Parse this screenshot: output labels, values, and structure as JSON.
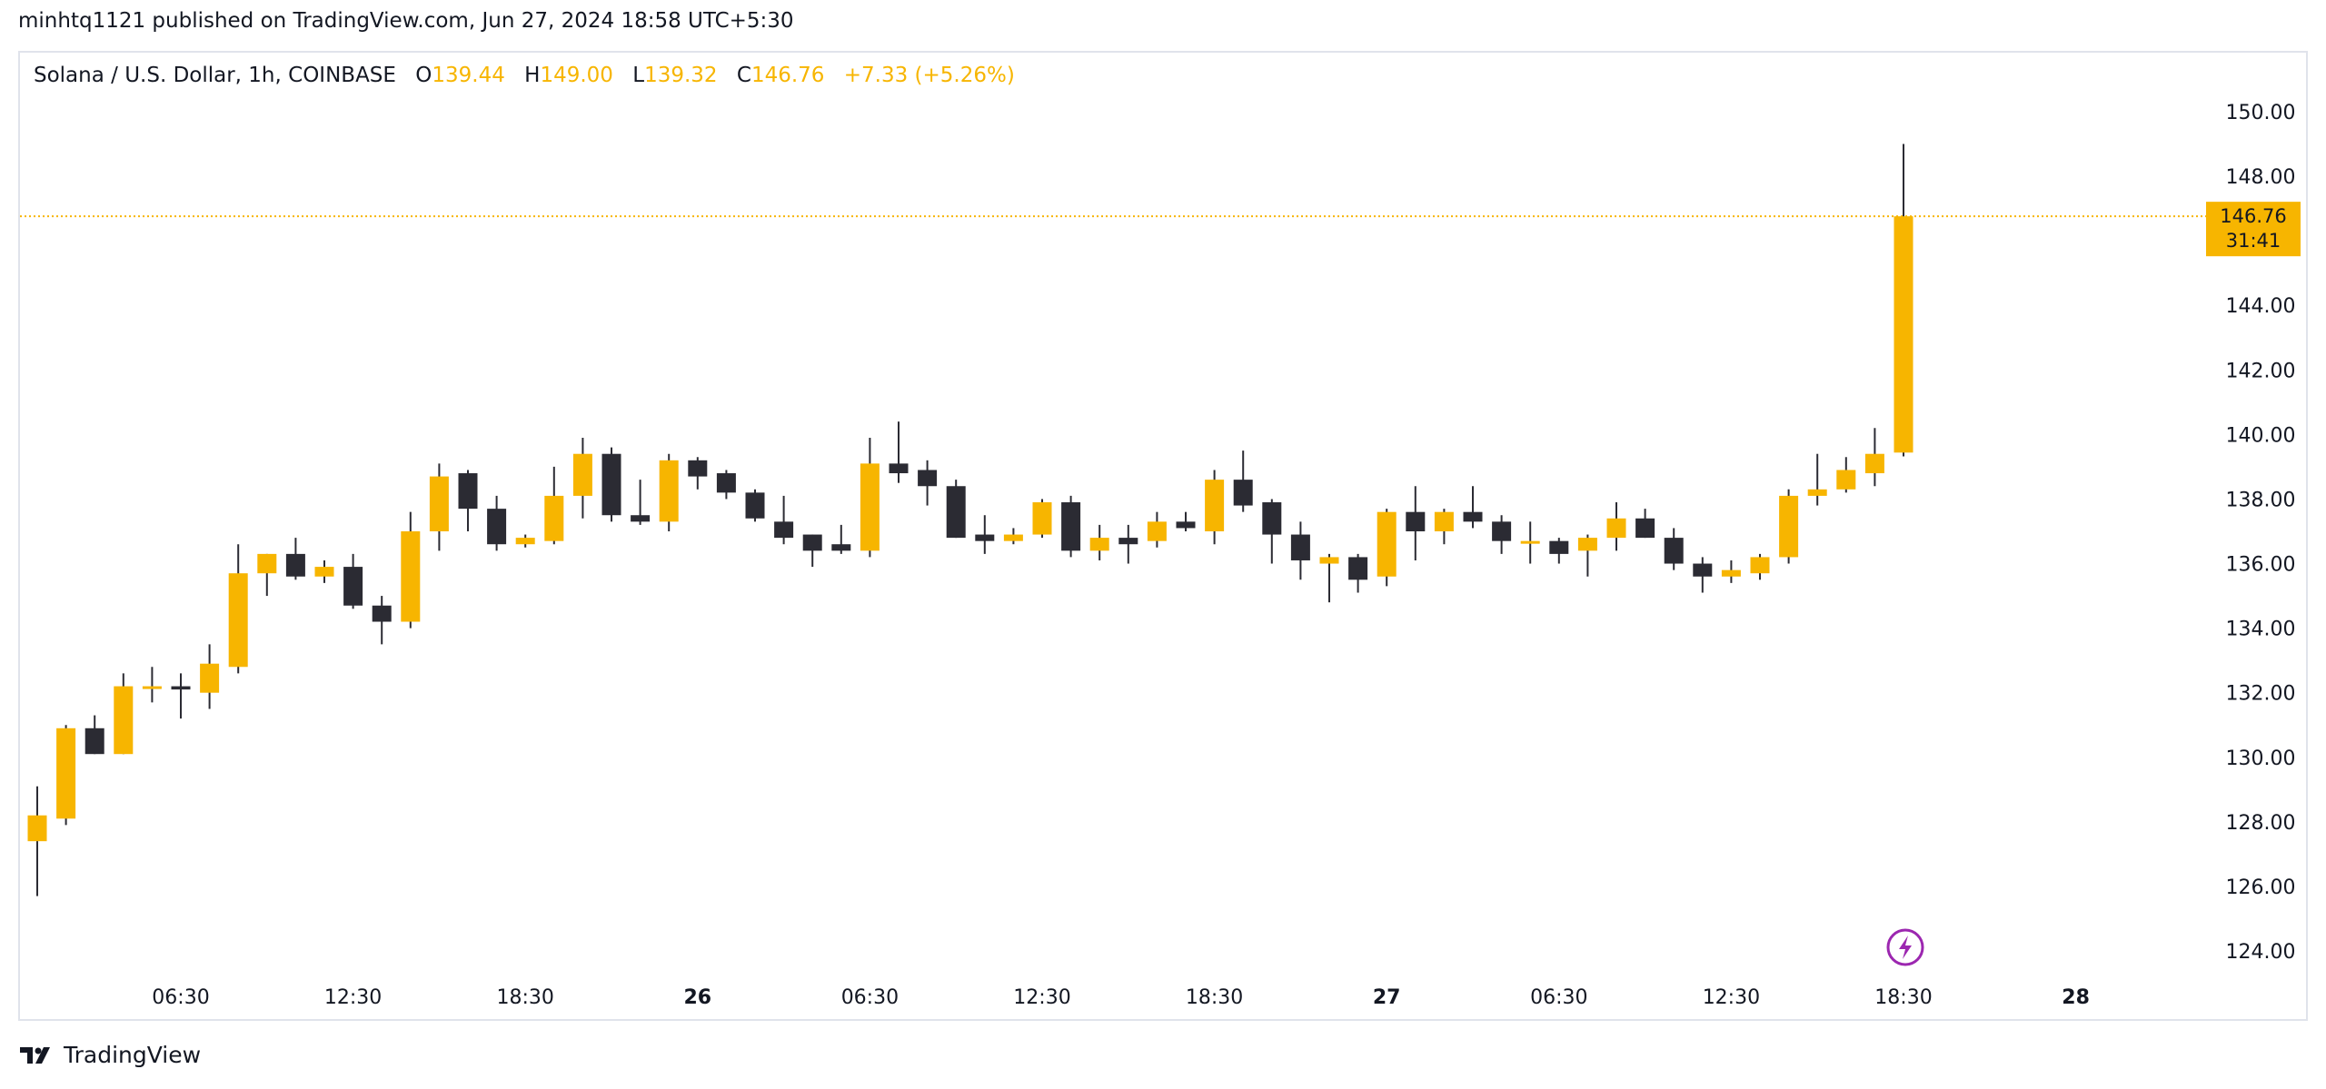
{
  "header": {
    "published_text": "minhtq1121 published on TradingView.com, Jun 27, 2024 18:58 UTC+5:30"
  },
  "legend": {
    "symbol": "Solana / U.S. Dollar, 1h, COINBASE",
    "open_label": "O",
    "open_value": "139.44",
    "high_label": "H",
    "high_value": "149.00",
    "low_label": "L",
    "low_value": "139.32",
    "close_label": "C",
    "close_value": "146.76",
    "change_value": "+7.33 (+5.26%)"
  },
  "price_badge": {
    "price": "146.76",
    "countdown": "31:41"
  },
  "footer": {
    "brand": "TradingView"
  },
  "colors": {
    "up": "#f7b500",
    "down": "#2b2b33",
    "grid": "#e0e3eb",
    "text": "#131722",
    "flash": "#9c27b0"
  },
  "chart_data": {
    "type": "candlestick",
    "title": "Solana / U.S. Dollar, 1h, COINBASE",
    "ylim": [
      123,
      151
    ],
    "y_ticks": [
      124,
      126,
      128,
      130,
      132,
      134,
      136,
      138,
      140,
      142,
      144,
      146,
      148,
      150
    ],
    "x_tick_labels": [
      {
        "index": 5,
        "label": "06:30",
        "bold": false
      },
      {
        "index": 11,
        "label": "12:30",
        "bold": false
      },
      {
        "index": 17,
        "label": "18:30",
        "bold": false
      },
      {
        "index": 23,
        "label": "26",
        "bold": true
      },
      {
        "index": 29,
        "label": "06:30",
        "bold": false
      },
      {
        "index": 35,
        "label": "12:30",
        "bold": false
      },
      {
        "index": 41,
        "label": "18:30",
        "bold": false
      },
      {
        "index": 47,
        "label": "27",
        "bold": true
      },
      {
        "index": 53,
        "label": "06:30",
        "bold": false
      },
      {
        "index": 59,
        "label": "12:30",
        "bold": false
      },
      {
        "index": 65,
        "label": "18:30",
        "bold": false
      },
      {
        "index": 71,
        "label": "28",
        "bold": true
      }
    ],
    "last_price": 146.76,
    "candles": [
      {
        "o": 127.4,
        "h": 129.1,
        "l": 125.7,
        "c": 128.2
      },
      {
        "o": 128.1,
        "h": 131.0,
        "l": 127.9,
        "c": 130.9
      },
      {
        "o": 130.9,
        "h": 131.3,
        "l": 130.1,
        "c": 130.1
      },
      {
        "o": 130.1,
        "h": 132.6,
        "l": 130.1,
        "c": 132.2
      },
      {
        "o": 132.2,
        "h": 132.8,
        "l": 131.7,
        "c": 132.2
      },
      {
        "o": 132.2,
        "h": 132.6,
        "l": 131.2,
        "c": 132.1
      },
      {
        "o": 132.0,
        "h": 133.5,
        "l": 131.5,
        "c": 132.9
      },
      {
        "o": 132.8,
        "h": 136.6,
        "l": 132.6,
        "c": 135.7
      },
      {
        "o": 135.7,
        "h": 136.3,
        "l": 135.0,
        "c": 136.3
      },
      {
        "o": 136.3,
        "h": 136.8,
        "l": 135.5,
        "c": 135.6
      },
      {
        "o": 135.6,
        "h": 136.1,
        "l": 135.4,
        "c": 135.9
      },
      {
        "o": 135.9,
        "h": 136.3,
        "l": 134.6,
        "c": 134.7
      },
      {
        "o": 134.7,
        "h": 135.0,
        "l": 133.5,
        "c": 134.2
      },
      {
        "o": 134.2,
        "h": 137.6,
        "l": 134.0,
        "c": 137.0
      },
      {
        "o": 137.0,
        "h": 139.1,
        "l": 136.4,
        "c": 138.7
      },
      {
        "o": 138.8,
        "h": 138.9,
        "l": 137.0,
        "c": 137.7
      },
      {
        "o": 137.7,
        "h": 138.1,
        "l": 136.4,
        "c": 136.6
      },
      {
        "o": 136.6,
        "h": 136.9,
        "l": 136.5,
        "c": 136.8
      },
      {
        "o": 136.7,
        "h": 139.0,
        "l": 136.6,
        "c": 138.1
      },
      {
        "o": 138.1,
        "h": 139.9,
        "l": 137.4,
        "c": 139.4
      },
      {
        "o": 139.4,
        "h": 139.6,
        "l": 137.3,
        "c": 137.5
      },
      {
        "o": 137.5,
        "h": 138.6,
        "l": 137.2,
        "c": 137.3
      },
      {
        "o": 137.3,
        "h": 139.4,
        "l": 137.0,
        "c": 139.2
      },
      {
        "o": 139.2,
        "h": 139.3,
        "l": 138.3,
        "c": 138.7
      },
      {
        "o": 138.8,
        "h": 138.9,
        "l": 138.0,
        "c": 138.2
      },
      {
        "o": 138.2,
        "h": 138.3,
        "l": 137.3,
        "c": 137.4
      },
      {
        "o": 137.3,
        "h": 138.1,
        "l": 136.6,
        "c": 136.8
      },
      {
        "o": 136.9,
        "h": 136.9,
        "l": 135.9,
        "c": 136.4
      },
      {
        "o": 136.6,
        "h": 137.2,
        "l": 136.3,
        "c": 136.4
      },
      {
        "o": 136.4,
        "h": 139.9,
        "l": 136.2,
        "c": 139.1
      },
      {
        "o": 139.1,
        "h": 140.4,
        "l": 138.5,
        "c": 138.8
      },
      {
        "o": 138.9,
        "h": 139.2,
        "l": 137.8,
        "c": 138.4
      },
      {
        "o": 138.4,
        "h": 138.6,
        "l": 136.8,
        "c": 136.8
      },
      {
        "o": 136.9,
        "h": 137.5,
        "l": 136.3,
        "c": 136.7
      },
      {
        "o": 136.7,
        "h": 137.1,
        "l": 136.6,
        "c": 136.9
      },
      {
        "o": 136.9,
        "h": 138.0,
        "l": 136.8,
        "c": 137.9
      },
      {
        "o": 137.9,
        "h": 138.1,
        "l": 136.2,
        "c": 136.4
      },
      {
        "o": 136.4,
        "h": 137.2,
        "l": 136.1,
        "c": 136.8
      },
      {
        "o": 136.8,
        "h": 137.2,
        "l": 136.0,
        "c": 136.6
      },
      {
        "o": 136.7,
        "h": 137.6,
        "l": 136.5,
        "c": 137.3
      },
      {
        "o": 137.3,
        "h": 137.6,
        "l": 137.0,
        "c": 137.1
      },
      {
        "o": 137.0,
        "h": 138.9,
        "l": 136.6,
        "c": 138.6
      },
      {
        "o": 138.6,
        "h": 139.5,
        "l": 137.6,
        "c": 137.8
      },
      {
        "o": 137.9,
        "h": 138.0,
        "l": 136.0,
        "c": 136.9
      },
      {
        "o": 136.9,
        "h": 137.3,
        "l": 135.5,
        "c": 136.1
      },
      {
        "o": 136.0,
        "h": 136.3,
        "l": 134.8,
        "c": 136.2
      },
      {
        "o": 136.2,
        "h": 136.3,
        "l": 135.1,
        "c": 135.5
      },
      {
        "o": 135.6,
        "h": 137.7,
        "l": 135.3,
        "c": 137.6
      },
      {
        "o": 137.6,
        "h": 138.4,
        "l": 136.1,
        "c": 137.0
      },
      {
        "o": 137.0,
        "h": 137.7,
        "l": 136.6,
        "c": 137.6
      },
      {
        "o": 137.6,
        "h": 138.4,
        "l": 137.1,
        "c": 137.3
      },
      {
        "o": 137.3,
        "h": 137.5,
        "l": 136.3,
        "c": 136.7
      },
      {
        "o": 136.7,
        "h": 137.3,
        "l": 136.0,
        "c": 136.7
      },
      {
        "o": 136.7,
        "h": 136.8,
        "l": 136.0,
        "c": 136.3
      },
      {
        "o": 136.4,
        "h": 136.9,
        "l": 135.6,
        "c": 136.8
      },
      {
        "o": 136.8,
        "h": 137.9,
        "l": 136.4,
        "c": 137.4
      },
      {
        "o": 137.4,
        "h": 137.7,
        "l": 136.8,
        "c": 136.8
      },
      {
        "o": 136.8,
        "h": 137.1,
        "l": 135.8,
        "c": 136.0
      },
      {
        "o": 136.0,
        "h": 136.2,
        "l": 135.1,
        "c": 135.6
      },
      {
        "o": 135.6,
        "h": 136.1,
        "l": 135.4,
        "c": 135.8
      },
      {
        "o": 135.7,
        "h": 136.3,
        "l": 135.5,
        "c": 136.2
      },
      {
        "o": 136.2,
        "h": 138.3,
        "l": 136.0,
        "c": 138.1
      },
      {
        "o": 138.1,
        "h": 139.4,
        "l": 137.8,
        "c": 138.3
      },
      {
        "o": 138.3,
        "h": 139.3,
        "l": 138.2,
        "c": 138.9
      },
      {
        "o": 138.8,
        "h": 140.2,
        "l": 138.4,
        "c": 139.4
      },
      {
        "o": 139.44,
        "h": 149.0,
        "l": 139.32,
        "c": 146.76
      }
    ]
  }
}
